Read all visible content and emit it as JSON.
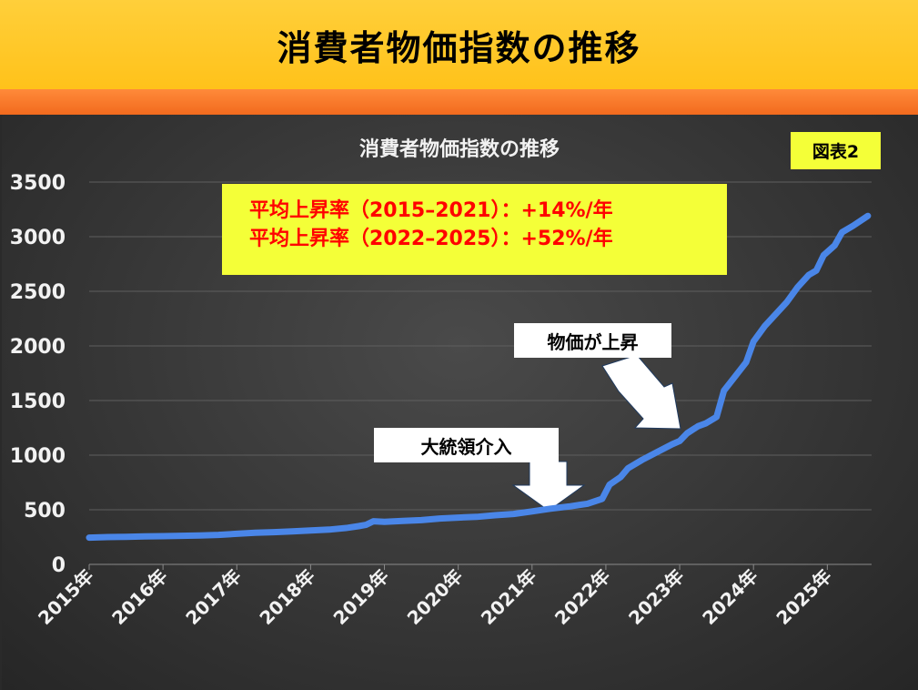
{
  "banner": {
    "title": "消費者物価指数の推移"
  },
  "badge": "図表2",
  "rate_box": {
    "line1": "平均上昇率（2015–2021）：+14%/年",
    "line2": "平均上昇率（2022–2025）：+52%/年"
  },
  "callouts": {
    "intervention": "大統領介入",
    "price_rise": "物価が上昇"
  },
  "colors": {
    "line": "#4a86e8",
    "banner": "#ffc21a",
    "stripe": "#f26a1e",
    "highlight": "#f4ff38",
    "rate_text": "#ff0000"
  },
  "chart_data": {
    "type": "line",
    "title": "消費者物価指数の推移",
    "xlabel": "",
    "ylabel": "",
    "ylim": [
      0,
      3500
    ],
    "yticks": [
      0,
      500,
      1000,
      1500,
      2000,
      2500,
      3000,
      3500
    ],
    "xlim": [
      2015.0,
      2025.6
    ],
    "xticks": [
      {
        "x": 2015,
        "label": "2015年"
      },
      {
        "x": 2016,
        "label": "2016年"
      },
      {
        "x": 2017,
        "label": "2017年"
      },
      {
        "x": 2018,
        "label": "2018年"
      },
      {
        "x": 2019,
        "label": "2019年"
      },
      {
        "x": 2020,
        "label": "2020年"
      },
      {
        "x": 2021,
        "label": "2021年"
      },
      {
        "x": 2022,
        "label": "2022年"
      },
      {
        "x": 2023,
        "label": "2023年"
      },
      {
        "x": 2024,
        "label": "2024年"
      },
      {
        "x": 2025,
        "label": "2025年"
      }
    ],
    "grid": true,
    "series": [
      {
        "points": [
          [
            2015.0,
            245
          ],
          [
            2015.25,
            250
          ],
          [
            2015.5,
            252
          ],
          [
            2015.75,
            256
          ],
          [
            2016.0,
            258
          ],
          [
            2016.25,
            262
          ],
          [
            2016.5,
            265
          ],
          [
            2016.75,
            270
          ],
          [
            2017.0,
            280
          ],
          [
            2017.25,
            290
          ],
          [
            2017.5,
            295
          ],
          [
            2017.75,
            302
          ],
          [
            2018.0,
            310
          ],
          [
            2018.25,
            318
          ],
          [
            2018.5,
            335
          ],
          [
            2018.65,
            350
          ],
          [
            2018.75,
            362
          ],
          [
            2018.85,
            395
          ],
          [
            2019.0,
            390
          ],
          [
            2019.25,
            398
          ],
          [
            2019.5,
            405
          ],
          [
            2019.75,
            420
          ],
          [
            2020.0,
            428
          ],
          [
            2020.25,
            435
          ],
          [
            2020.5,
            450
          ],
          [
            2020.75,
            462
          ],
          [
            2021.0,
            485
          ],
          [
            2021.25,
            510
          ],
          [
            2021.5,
            530
          ],
          [
            2021.75,
            555
          ],
          [
            2021.95,
            600
          ],
          [
            2022.05,
            730
          ],
          [
            2022.2,
            800
          ],
          [
            2022.3,
            880
          ],
          [
            2022.5,
            960
          ],
          [
            2022.7,
            1030
          ],
          [
            2022.9,
            1100
          ],
          [
            2023.0,
            1130
          ],
          [
            2023.1,
            1200
          ],
          [
            2023.25,
            1265
          ],
          [
            2023.35,
            1290
          ],
          [
            2023.5,
            1350
          ],
          [
            2023.6,
            1590
          ],
          [
            2023.75,
            1720
          ],
          [
            2023.9,
            1850
          ],
          [
            2024.0,
            2040
          ],
          [
            2024.15,
            2180
          ],
          [
            2024.3,
            2290
          ],
          [
            2024.45,
            2400
          ],
          [
            2024.6,
            2540
          ],
          [
            2024.75,
            2650
          ],
          [
            2024.85,
            2690
          ],
          [
            2024.95,
            2830
          ],
          [
            2025.1,
            2920
          ],
          [
            2025.2,
            3040
          ],
          [
            2025.35,
            3100
          ],
          [
            2025.55,
            3190
          ]
        ]
      }
    ]
  }
}
